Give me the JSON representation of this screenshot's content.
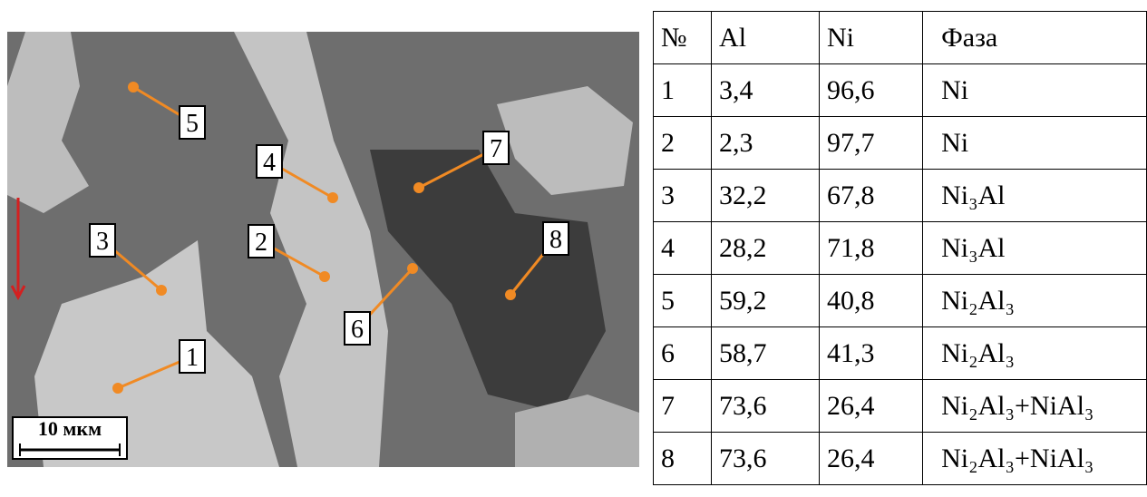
{
  "micrograph": {
    "labels": [
      "1",
      "2",
      "3",
      "4",
      "5",
      "6",
      "7",
      "8"
    ],
    "scale_bar": "10 мкм"
  },
  "table": {
    "header": [
      "№",
      "Al",
      "Ni",
      "Фаза"
    ],
    "rows": [
      [
        "1",
        "3,4",
        "96,6",
        "Ni"
      ],
      [
        "2",
        "2,3",
        "97,7",
        "Ni"
      ],
      [
        "3",
        "32,2",
        "67,8",
        "Ni₃Al"
      ],
      [
        "4",
        "28,2",
        "71,8",
        "Ni₃Al"
      ],
      [
        "5",
        "59,2",
        "40,8",
        "Ni₂Al₃"
      ],
      [
        "6",
        "58,7",
        "41,3",
        "Ni₂Al₃"
      ],
      [
        "7",
        "73,6",
        "26,4",
        "Ni₂Al₃+NiAl₃"
      ],
      [
        "8",
        "73,6",
        "26,4",
        "Ni₂Al₃+NiAl₃"
      ]
    ]
  }
}
